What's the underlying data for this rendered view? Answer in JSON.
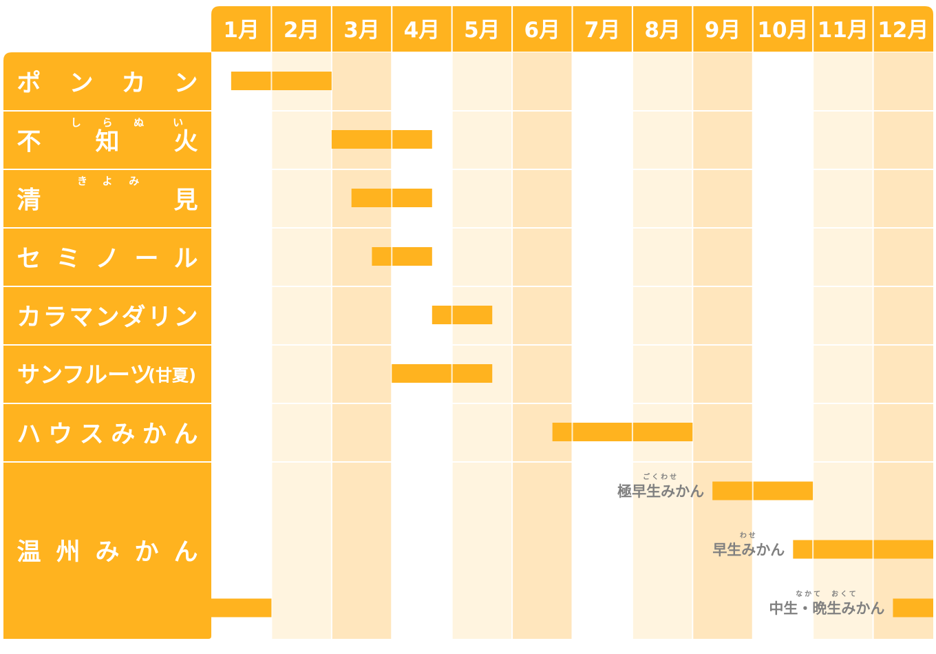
{
  "colors": {
    "accent": "#ffb31f",
    "col_light": "#fff4df",
    "col_medium": "#ffe6bd",
    "background": "#ffffff",
    "gridline": "#ffffff",
    "sub_label": "#808080"
  },
  "chart_data": {
    "type": "gantt",
    "title": "",
    "months": [
      "1月",
      "2月",
      "3月",
      "4月",
      "5月",
      "6月",
      "7月",
      "8月",
      "9月",
      "10月",
      "11月",
      "12月"
    ],
    "column_shading": [
      "none",
      "light",
      "medium",
      "none",
      "light",
      "medium",
      "none",
      "light",
      "medium",
      "none",
      "light",
      "medium"
    ],
    "rows": [
      {
        "label_chars": [
          "ポ",
          "ン",
          "カ",
          "ン"
        ],
        "ruby": [],
        "bars": [
          {
            "start": 0.33,
            "end": 2.0,
            "label": "",
            "label_ruby": ""
          }
        ]
      },
      {
        "label_chars": [
          "不",
          "知",
          "火"
        ],
        "ruby": [
          {
            "text": "し",
            "char": 0.6
          },
          {
            "text": "ら",
            "char": 1.0
          },
          {
            "text": "ぬ",
            "char": 1.4
          },
          {
            "text": "い",
            "char": 1.9
          }
        ],
        "bars": [
          {
            "start": 2.0,
            "end": 3.67,
            "label": "",
            "label_ruby": ""
          }
        ]
      },
      {
        "label_chars": [
          "清",
          "見"
        ],
        "ruby": [
          {
            "text": "き",
            "char": 0.34
          },
          {
            "text": "よ",
            "char": 0.5
          },
          {
            "text": "み",
            "char": 0.67
          }
        ],
        "bars": [
          {
            "start": 2.33,
            "end": 3.67,
            "label": "",
            "label_ruby": ""
          }
        ]
      },
      {
        "label_chars": [
          "セ",
          "ミ",
          "ノ",
          "ー",
          "ル"
        ],
        "ruby": [],
        "bars": [
          {
            "start": 2.67,
            "end": 3.67,
            "label": "",
            "label_ruby": ""
          }
        ]
      },
      {
        "label_chars": [
          "カ",
          "ラ",
          "マ",
          "ン",
          "ダ",
          "リ",
          "ン"
        ],
        "ruby": [],
        "bars": [
          {
            "start": 3.67,
            "end": 4.67,
            "label": "",
            "label_ruby": ""
          }
        ]
      },
      {
        "label_chars": [
          "サンフルーツ",
          "(甘夏)"
        ],
        "ruby": [],
        "bars": [
          {
            "start": 3.0,
            "end": 4.67,
            "label": "",
            "label_ruby": ""
          }
        ]
      },
      {
        "label_chars": [
          "ハ",
          "ウ",
          "ス",
          "み",
          "か",
          "ん"
        ],
        "ruby": [],
        "bars": [
          {
            "start": 5.67,
            "end": 8.0,
            "label": "",
            "label_ruby": ""
          }
        ]
      },
      {
        "label_chars": [
          "温",
          "州",
          "み",
          "か",
          "ん"
        ],
        "ruby": [],
        "tall": true,
        "bars": [
          {
            "start": 8.33,
            "end": 10.0,
            "label": "極早生みかん",
            "label_ruby": "ごくわせ"
          },
          {
            "start": 9.67,
            "end": 12.0,
            "label": "早生みかん",
            "label_ruby": "わせ"
          },
          {
            "start": 11.33,
            "end": 12.0,
            "label": "中生・晩生みかん",
            "label_ruby": "なかて　おくて"
          },
          {
            "start": 0.0,
            "end": 1.0,
            "label": "",
            "label_ruby": ""
          }
        ]
      }
    ]
  }
}
